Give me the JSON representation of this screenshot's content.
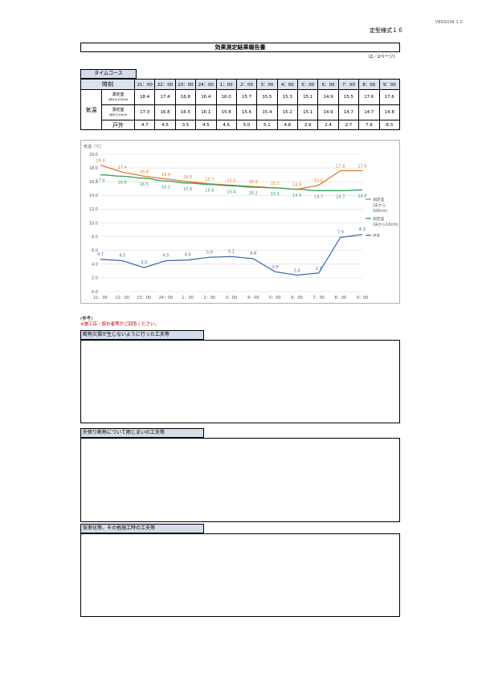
{
  "header": {
    "version": "VERSION 1.0",
    "form_no": "定型様式１６",
    "title": "効果測定結果報告書",
    "page_open": "（",
    "page_current": "2",
    "page_sep": "／",
    "page_total": "2",
    "page_close": "ページ）"
  },
  "time_course": {
    "label": "タイムコース",
    "time_header": "時刻",
    "group_label": "気温",
    "times": [
      "21：00",
      "22：00",
      "23：00",
      "24：00",
      "1：00",
      "2：00",
      "3：00",
      "4：00",
      "5：00",
      "6：00",
      "7：00",
      "8：00",
      "9：00"
    ],
    "rows": [
      {
        "label": "測定室",
        "sublabel": "(床から100cm)",
        "values": [
          "18.4",
          "17.4",
          "16.8",
          "16.4",
          "16.0",
          "15.7",
          "15.5",
          "15.3",
          "15.1",
          "14.9",
          "15.5",
          "17.6",
          "17.6"
        ]
      },
      {
        "label": "測定室",
        "sublabel": "(床から10cm)",
        "values": [
          "17.0",
          "16.8",
          "16.5",
          "16.1",
          "15.8",
          "15.6",
          "15.4",
          "15.2",
          "15.1",
          "14.9",
          "14.7",
          "14.7",
          "14.8"
        ]
      },
      {
        "label": "戸外",
        "sublabel": "",
        "values": [
          "4.7",
          "4.5",
          "3.5",
          "4.5",
          "4.6",
          "5.0",
          "5.1",
          "4.8",
          "2.9",
          "2.4",
          "2.7",
          "7.9",
          "8.3"
        ]
      }
    ]
  },
  "chart_data": {
    "type": "line",
    "ylabel": "気温（℃）",
    "ylim": [
      0,
      20
    ],
    "y_ticks": [
      "0.0",
      "2.0",
      "4.0",
      "6.0",
      "8.0",
      "10.0",
      "12.0",
      "14.0",
      "16.0",
      "18.0",
      "20.0"
    ],
    "x": [
      "21：00",
      "22：00",
      "23：00",
      "24：00",
      "1：00",
      "2：00",
      "3：00",
      "4：00",
      "5：00",
      "6：00",
      "7：00",
      "8：00",
      "9：00"
    ],
    "grid": true,
    "legend_position": "right",
    "series": [
      {
        "name": "測定室（床から100cm）",
        "legend_lines": [
          "測定室",
          "(床から",
          "100cm)"
        ],
        "color": "#e07b2a",
        "values": [
          18.4,
          17.4,
          16.8,
          16.4,
          16.0,
          15.7,
          15.5,
          15.3,
          15.1,
          14.9,
          15.5,
          17.6,
          17.6
        ],
        "line": "step"
      },
      {
        "name": "測定室（床から10cm）",
        "legend_lines": [
          "測定室",
          "(床から10cm)"
        ],
        "color": "#2e9e5b",
        "values": [
          17.0,
          16.8,
          16.5,
          16.1,
          15.8,
          15.6,
          15.4,
          15.2,
          15.1,
          14.9,
          14.7,
          14.7,
          14.8
        ],
        "line": "smooth"
      },
      {
        "name": "戸外",
        "legend_lines": [
          "戸外"
        ],
        "color": "#3f6db1",
        "values": [
          4.7,
          4.5,
          3.5,
          4.5,
          4.6,
          5.0,
          5.1,
          4.8,
          2.9,
          2.4,
          2.7,
          7.9,
          8.3
        ],
        "line": "straight"
      }
    ]
  },
  "reference": {
    "head": "(参考)",
    "note": "※施工店・設計者等がご回答ください。"
  },
  "sections": [
    {
      "label": "断熱欠損が生じないように行った工夫等",
      "content": ""
    },
    {
      "label": "外張り断熱について雨じまいの工夫等",
      "content": ""
    },
    {
      "label": "気密化等、その他施工時の工夫等",
      "content": ""
    }
  ]
}
